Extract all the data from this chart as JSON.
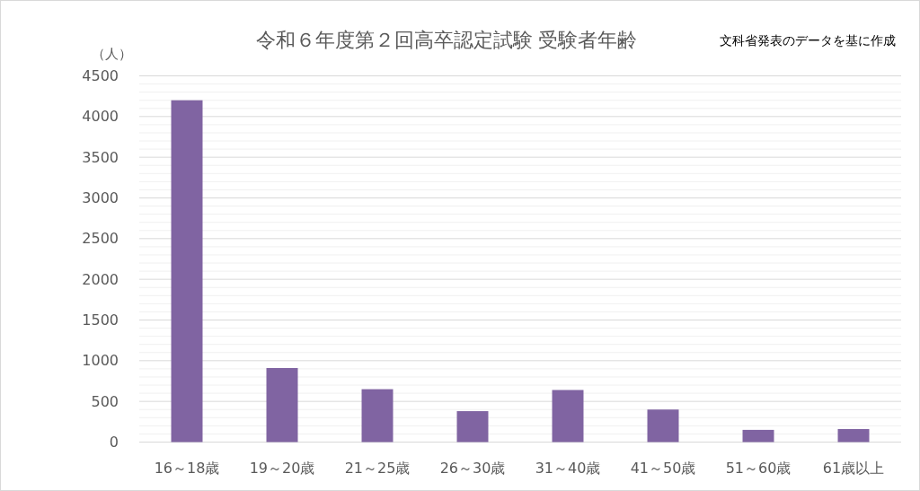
{
  "chart_data": {
    "type": "bar",
    "title": "令和６年度第２回高卒認定試験 受験者年齢",
    "ylabel": "（人）",
    "annotations": [
      "文科省発表のデータを基に作成"
    ],
    "categories": [
      "16～18歳",
      "19～20歳",
      "21～25歳",
      "26～30歳",
      "31～40歳",
      "41～50歳",
      "51～60歳",
      "61歳以上"
    ],
    "values": [
      4200,
      910,
      650,
      380,
      640,
      400,
      150,
      160
    ],
    "color": "#8064a2",
    "ylim": [
      0,
      4500
    ],
    "yticks": [
      0,
      {
        "value": 100,
        "label": null
      },
      {
        "value": 200,
        "label": null
      },
      {
        "value": 300,
        "label": null
      },
      {
        "value": 400,
        "label": null
      },
      500,
      {
        "value": 600,
        "label": null
      },
      {
        "value": 700,
        "label": null
      },
      {
        "value": 800,
        "label": null
      },
      {
        "value": 900,
        "label": null
      },
      1000,
      {
        "value": 1100,
        "label": null
      },
      {
        "value": 1200,
        "label": null
      },
      {
        "value": 1300,
        "label": null
      },
      {
        "value": 1400,
        "label": null
      },
      1500,
      {
        "value": 1600,
        "label": null
      },
      {
        "value": 1700,
        "label": null
      },
      {
        "value": 1800,
        "label": null
      },
      {
        "value": 1900,
        "label": null
      },
      2000,
      {
        "value": 2100,
        "label": null
      },
      {
        "value": 2200,
        "label": null
      },
      {
        "value": 2300,
        "label": null
      },
      {
        "value": 2400,
        "label": null
      },
      2500,
      {
        "value": 2600,
        "label": null
      },
      {
        "value": 2700,
        "label": null
      },
      {
        "value": 2800,
        "label": null
      },
      {
        "value": 2900,
        "label": null
      },
      3000,
      {
        "value": 3100,
        "label": null
      },
      {
        "value": 3200,
        "label": null
      },
      {
        "value": 3300,
        "label": null
      },
      {
        "value": 3400,
        "label": null
      },
      3500,
      {
        "value": 3600,
        "label": null
      },
      {
        "value": 3700,
        "label": null
      },
      {
        "value": 3800,
        "label": null
      },
      {
        "value": 3900,
        "label": null
      },
      4000,
      {
        "value": 4100,
        "label": null
      },
      {
        "value": 4200,
        "label": null
      },
      {
        "value": 4300,
        "label": null
      },
      {
        "value": 4400,
        "label": null
      },
      4500
    ],
    "grid": "y"
  }
}
